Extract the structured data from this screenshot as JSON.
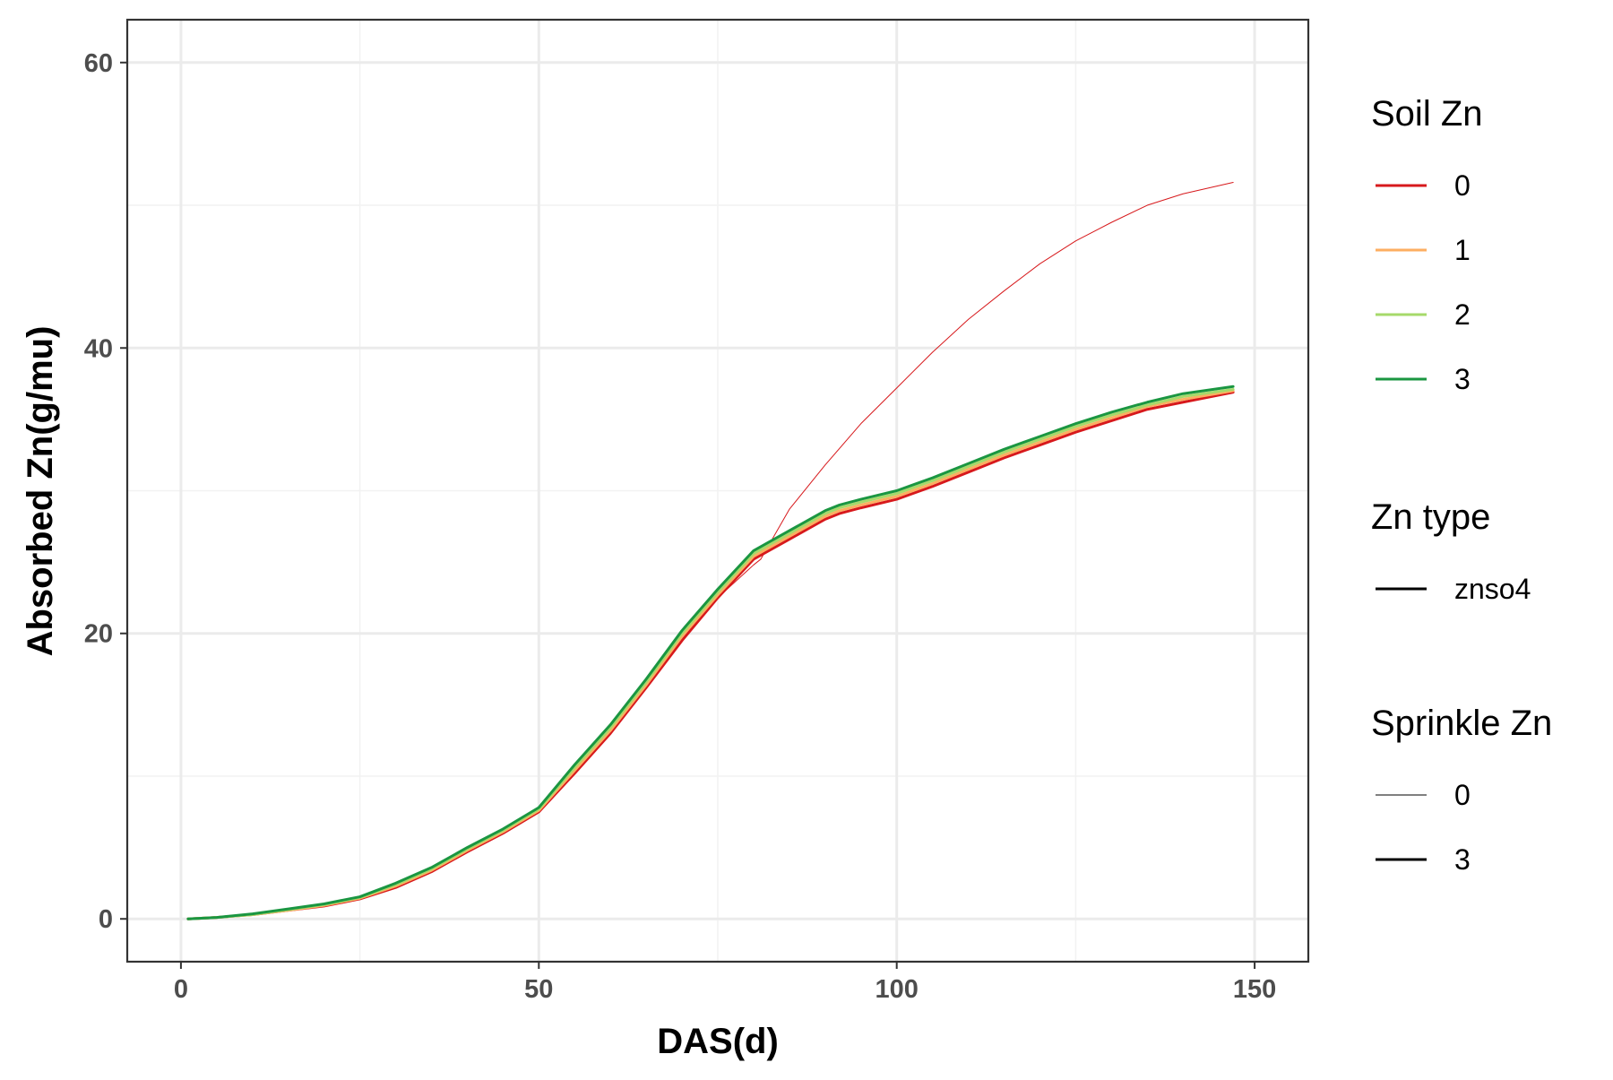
{
  "chart_data": {
    "type": "line",
    "title": "",
    "xlabel": "DAS(d)",
    "ylabel": "Absorbed Zn(g/mu)",
    "xlim": [
      -7.5,
      157.5
    ],
    "ylim": [
      -3,
      63
    ],
    "x_ticks": [
      0,
      50,
      100,
      150
    ],
    "y_ticks": [
      0,
      20,
      40,
      60
    ],
    "x_tick_labels": [
      "0",
      "50",
      "100",
      "150"
    ],
    "y_tick_labels": [
      "0",
      "20",
      "40",
      "60"
    ],
    "grid": true,
    "legend_position": "right",
    "series": [
      {
        "soil_zn": "0",
        "zn_type": "znso4",
        "sprinkle_zn": "0",
        "color": "#d7191c",
        "x": [
          1,
          5,
          10,
          15,
          20,
          25,
          30,
          35,
          40,
          45,
          50,
          55,
          60,
          65,
          70,
          75,
          80,
          81,
          85,
          90,
          95,
          100,
          105,
          110,
          115,
          120,
          125,
          130,
          135,
          140,
          147
        ],
        "values": [
          0,
          0.1,
          0.3,
          0.6,
          0.9,
          1.4,
          2.2,
          3.3,
          4.7,
          6.0,
          7.5,
          10.2,
          13.0,
          16.2,
          19.5,
          22.5,
          24.8,
          25.2,
          28.7,
          31.8,
          34.7,
          37.2,
          39.7,
          42.0,
          44.0,
          45.9,
          47.5,
          48.8,
          50.0,
          50.8,
          51.6
        ]
      },
      {
        "soil_zn": "0",
        "zn_type": "znso4",
        "sprinkle_zn": "3",
        "color": "#d7191c",
        "x": [
          1,
          5,
          10,
          15,
          20,
          25,
          30,
          35,
          40,
          45,
          50,
          55,
          60,
          65,
          70,
          75,
          80,
          85,
          90,
          92,
          95,
          100,
          105,
          110,
          115,
          120,
          125,
          130,
          135,
          140,
          147
        ],
        "values": [
          0,
          0.1,
          0.3,
          0.6,
          0.9,
          1.4,
          2.2,
          3.3,
          4.7,
          6.0,
          7.5,
          10.2,
          13.0,
          16.2,
          19.5,
          22.5,
          25.2,
          26.6,
          28.0,
          28.4,
          28.8,
          29.4,
          30.3,
          31.3,
          32.3,
          33.2,
          34.1,
          34.9,
          35.7,
          36.2,
          36.9
        ]
      },
      {
        "soil_zn": "1",
        "zn_type": "znso4",
        "sprinkle_zn": "3",
        "color": "#fdae61",
        "x": [
          1,
          5,
          10,
          15,
          20,
          25,
          30,
          35,
          40,
          45,
          50,
          55,
          60,
          65,
          70,
          75,
          80,
          85,
          90,
          92,
          95,
          100,
          105,
          110,
          115,
          120,
          125,
          130,
          135,
          140,
          147
        ],
        "values": [
          0,
          0.1,
          0.3,
          0.6,
          0.95,
          1.45,
          2.3,
          3.4,
          4.8,
          6.1,
          7.6,
          10.4,
          13.2,
          16.4,
          19.8,
          22.7,
          25.4,
          26.8,
          28.2,
          28.6,
          29.0,
          29.6,
          30.5,
          31.5,
          32.5,
          33.4,
          34.3,
          35.1,
          35.9,
          36.4,
          37.0
        ]
      },
      {
        "soil_zn": "2",
        "zn_type": "znso4",
        "sprinkle_zn": "3",
        "color": "#a6d96a",
        "x": [
          1,
          5,
          10,
          15,
          20,
          25,
          30,
          35,
          40,
          45,
          50,
          55,
          60,
          65,
          70,
          75,
          80,
          85,
          90,
          92,
          95,
          100,
          105,
          110,
          115,
          120,
          125,
          130,
          135,
          140,
          147
        ],
        "values": [
          0,
          0.1,
          0.3,
          0.65,
          1.0,
          1.5,
          2.4,
          3.5,
          4.9,
          6.2,
          7.7,
          10.6,
          13.4,
          16.6,
          20.0,
          22.9,
          25.6,
          27.0,
          28.4,
          28.8,
          29.2,
          29.8,
          30.7,
          31.7,
          32.7,
          33.6,
          34.5,
          35.3,
          36.0,
          36.6,
          37.1
        ]
      },
      {
        "soil_zn": "3",
        "zn_type": "znso4",
        "sprinkle_zn": "3",
        "color": "#1a9641",
        "x": [
          1,
          5,
          10,
          15,
          20,
          25,
          30,
          35,
          40,
          45,
          50,
          55,
          60,
          65,
          70,
          75,
          80,
          85,
          90,
          92,
          95,
          100,
          105,
          110,
          115,
          120,
          125,
          130,
          135,
          140,
          147
        ],
        "values": [
          0,
          0.1,
          0.35,
          0.7,
          1.05,
          1.55,
          2.5,
          3.6,
          5.0,
          6.3,
          7.8,
          10.8,
          13.6,
          16.8,
          20.2,
          23.1,
          25.8,
          27.2,
          28.6,
          29.0,
          29.4,
          30.0,
          30.9,
          31.9,
          32.9,
          33.8,
          34.7,
          35.5,
          36.2,
          36.8,
          37.3
        ]
      }
    ],
    "legend": {
      "groups": [
        {
          "title": "Soil Zn",
          "items": [
            {
              "label": "0",
              "color": "#d7191c",
              "width": 3
            },
            {
              "label": "1",
              "color": "#fdae61",
              "width": 3
            },
            {
              "label": "2",
              "color": "#a6d96a",
              "width": 3
            },
            {
              "label": "3",
              "color": "#1a9641",
              "width": 3
            }
          ]
        },
        {
          "title": "Zn type",
          "items": [
            {
              "label": "znso4",
              "color": "#000000",
              "width": 3
            }
          ]
        },
        {
          "title": "Sprinkle Zn",
          "items": [
            {
              "label": "0",
              "color": "#000000",
              "width": 1
            },
            {
              "label": "3",
              "color": "#000000",
              "width": 3
            }
          ]
        }
      ]
    }
  }
}
